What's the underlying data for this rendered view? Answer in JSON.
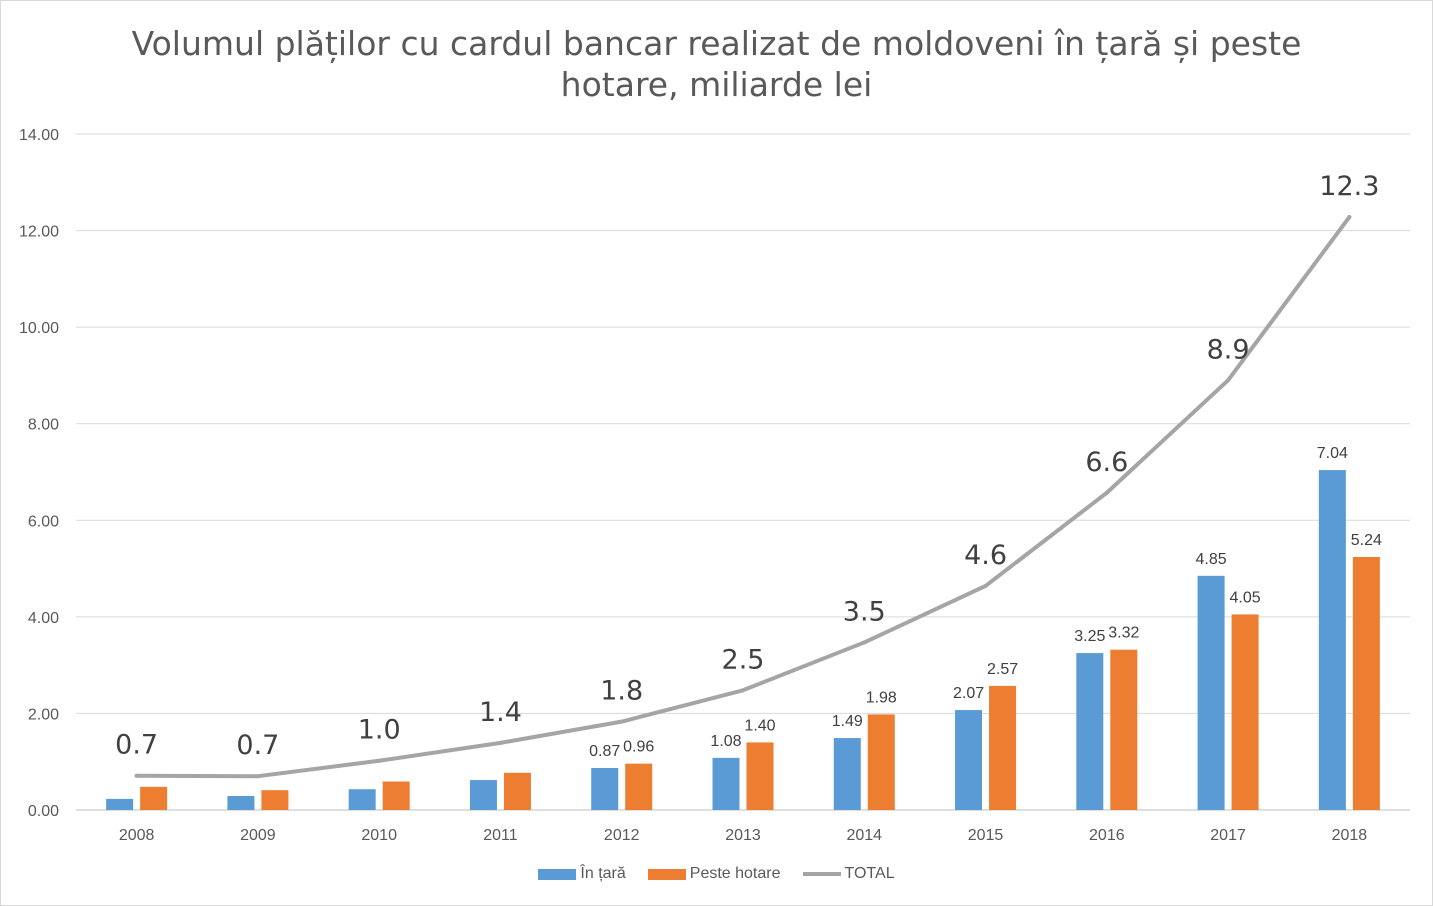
{
  "chart_data": {
    "type": "bar",
    "title_lines": [
      "Volumul plăților cu cardul bancar realizat de moldoveni în țară și peste",
      "hotare, miliarde lei"
    ],
    "categories": [
      "2008",
      "2009",
      "2010",
      "2011",
      "2012",
      "2013",
      "2014",
      "2015",
      "2016",
      "2017",
      "2018"
    ],
    "series": [
      {
        "name": "În țară",
        "type": "bar",
        "color": "#5b9bd5",
        "values": [
          0.23,
          0.29,
          0.43,
          0.62,
          0.87,
          1.08,
          1.49,
          2.07,
          3.25,
          4.85,
          7.04
        ],
        "labels": [
          "",
          "",
          "",
          "",
          "0.87",
          "1.08",
          "1.49",
          "2.07",
          "3.25",
          "4.85",
          "7.04"
        ]
      },
      {
        "name": "Peste hotare",
        "type": "bar",
        "color": "#ed7d31",
        "values": [
          0.48,
          0.41,
          0.59,
          0.77,
          0.96,
          1.4,
          1.98,
          2.57,
          3.32,
          4.05,
          5.24
        ],
        "labels": [
          "",
          "",
          "",
          "",
          "0.96",
          "1.40",
          "1.98",
          "2.57",
          "3.32",
          "4.05",
          "5.24"
        ]
      },
      {
        "name": "TOTAL",
        "type": "line",
        "color": "#a5a5a5",
        "values": [
          0.71,
          0.7,
          1.02,
          1.39,
          1.83,
          2.48,
          3.47,
          4.64,
          6.57,
          8.9,
          12.28
        ],
        "labels": [
          "0.7",
          "0.7",
          "1.0",
          "1.4",
          "1.8",
          "2.5",
          "3.5",
          "4.6",
          "6.6",
          "8.9",
          "12.3"
        ]
      }
    ],
    "y_ticks": [
      "0.00",
      "2.00",
      "4.00",
      "6.00",
      "8.00",
      "10.00",
      "12.00",
      "14.00"
    ],
    "ylim": [
      0,
      14
    ],
    "grid": true,
    "legend_position": "bottom"
  }
}
